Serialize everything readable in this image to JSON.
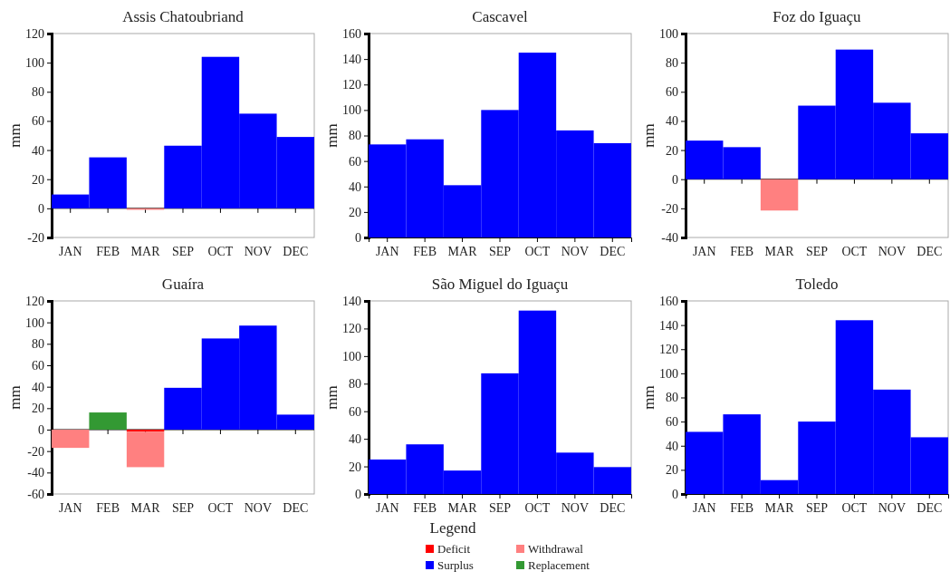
{
  "chart_data": [
    {
      "type": "bar",
      "title": "Assis Chatoubriand",
      "ylabel": "mm",
      "stacked": true,
      "ref_lines": [
        {
          "axis": "y",
          "value": 0,
          "color": "#000000"
        }
      ],
      "categories": [
        "JAN",
        "FEB",
        "MAR",
        "SEP",
        "OCT",
        "NOV",
        "DEC"
      ],
      "ylim": [
        -20,
        120
      ],
      "yticks": [
        -20,
        0,
        20,
        40,
        60,
        80,
        100,
        120
      ],
      "series": [
        {
          "color": "#ff8080",
          "values": [
            null,
            null,
            -1,
            null,
            null,
            null,
            null
          ]
        },
        {
          "color": "#0000ff",
          "values": [
            9.5,
            35,
            null,
            43,
            104,
            65,
            49
          ]
        }
      ]
    },
    {
      "type": "bar",
      "title": "Cascavel",
      "ylabel": "mm",
      "stacked": true,
      "categories": [
        "JAN",
        "FEB",
        "MAR",
        "SEP",
        "OCT",
        "NOV",
        "DEC"
      ],
      "ylim": [
        0,
        160
      ],
      "yticks": [
        0,
        20,
        40,
        60,
        80,
        100,
        120,
        140,
        160
      ],
      "series": [
        {
          "color": "#0000ff",
          "values": [
            73,
            77,
            41,
            100,
            145,
            84,
            74
          ]
        }
      ]
    },
    {
      "type": "bar",
      "title": "Foz do Iguaçu",
      "ylabel": "mm",
      "stacked": true,
      "ref_lines": [
        {
          "axis": "y",
          "value": 0,
          "color": "#000000"
        }
      ],
      "categories": [
        "JAN",
        "FEB",
        "MAR",
        "SEP",
        "OCT",
        "NOV",
        "DEC"
      ],
      "ylim": [
        -40,
        100
      ],
      "yticks": [
        -40,
        -20,
        0,
        20,
        40,
        60,
        80,
        100
      ],
      "series": [
        {
          "color": "#ff8080",
          "values": [
            null,
            null,
            -21.5,
            null,
            null,
            null,
            null
          ]
        },
        {
          "color": "#0000ff",
          "values": [
            26.5,
            22,
            null,
            50.5,
            89,
            52.5,
            31.5
          ]
        }
      ]
    },
    {
      "type": "bar",
      "title": "Guaíra",
      "ylabel": "mm",
      "stacked": true,
      "ref_lines": [
        {
          "axis": "y",
          "value": 0,
          "color": "#000000"
        }
      ],
      "categories": [
        "JAN",
        "FEB",
        "MAR",
        "SEP",
        "OCT",
        "NOV",
        "DEC"
      ],
      "ylim": [
        -60,
        120
      ],
      "yticks": [
        -60,
        -40,
        -20,
        0,
        20,
        40,
        60,
        80,
        100,
        120
      ],
      "series": [
        {
          "color": "#ff0000",
          "values": [
            null,
            null,
            -2,
            null,
            null,
            null,
            null
          ]
        },
        {
          "color": "#ff8080",
          "values": [
            -17,
            null,
            -33,
            null,
            null,
            null,
            null
          ]
        },
        {
          "color": "#0000ff",
          "values": [
            null,
            null,
            null,
            39,
            85,
            97,
            14
          ]
        },
        {
          "color": "#339933",
          "values": [
            null,
            16,
            null,
            null,
            null,
            null,
            null
          ]
        }
      ]
    },
    {
      "type": "bar",
      "title": "São Miguel do Iguaçu",
      "ylabel": "mm",
      "stacked": true,
      "legend": "bottom",
      "legend_title": "Legend",
      "categories": [
        "JAN",
        "FEB",
        "MAR",
        "SEP",
        "OCT",
        "NOV",
        "DEC"
      ],
      "ylim": [
        0,
        140
      ],
      "yticks": [
        0,
        20,
        40,
        60,
        80,
        100,
        120,
        140
      ],
      "series": [
        {
          "name": "Deficit",
          "color": "#ff0000",
          "values": [
            null,
            null,
            null,
            null,
            null,
            null,
            null
          ]
        },
        {
          "name": "Withdrawal",
          "color": "#ff8080",
          "values": [
            null,
            null,
            null,
            null,
            null,
            null,
            null
          ]
        },
        {
          "name": "Surplus",
          "color": "#0000ff",
          "values": [
            25,
            36,
            17,
            87.5,
            133,
            30,
            19.5
          ]
        },
        {
          "name": "Replacement",
          "color": "#339933",
          "values": [
            null,
            null,
            null,
            null,
            null,
            null,
            null
          ]
        }
      ]
    },
    {
      "type": "bar",
      "title": "Toledo",
      "ylabel": "mm",
      "stacked": true,
      "categories": [
        "JAN",
        "FEB",
        "MAR",
        "SEP",
        "OCT",
        "NOV",
        "DEC"
      ],
      "ylim": [
        0,
        160
      ],
      "yticks": [
        0,
        20,
        40,
        60,
        80,
        100,
        120,
        140,
        160
      ],
      "series": [
        {
          "color": "#0000ff",
          "values": [
            51.5,
            66,
            11.5,
            60,
            144,
            86.5,
            47
          ]
        }
      ]
    }
  ]
}
